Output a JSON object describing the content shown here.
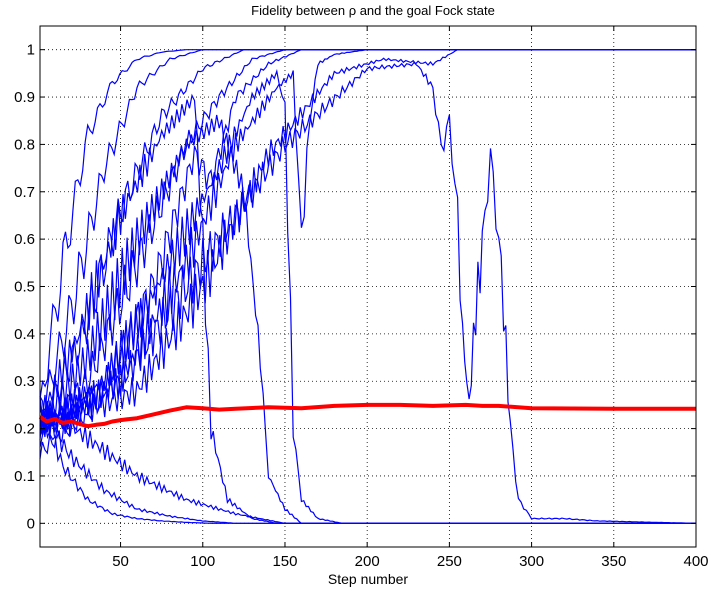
{
  "chart_data": {
    "type": "line",
    "title": "Fidelity between ρ and the goal Fock state",
    "xlabel": "Step number",
    "ylabel": "",
    "xlim": [
      1,
      400
    ],
    "ylim": [
      -0.05,
      1.05
    ],
    "x_ticks": [
      50,
      100,
      150,
      200,
      250,
      300,
      350,
      400
    ],
    "y_ticks": [
      0,
      0.1,
      0.2,
      0.3,
      0.4,
      0.5,
      0.6,
      0.7,
      0.8,
      0.9,
      1
    ],
    "x_tick_labels": [
      "50",
      "100",
      "150",
      "200",
      "250",
      "300",
      "350",
      "400"
    ],
    "y_tick_labels": [
      "0",
      "0.1",
      "0.2",
      "0.3",
      "0.4",
      "0.5",
      "0.6",
      "0.7",
      "0.8",
      "0.9",
      "1"
    ],
    "grid": true,
    "legend": "none",
    "colors": {
      "trajectories": "#0000ff",
      "average": "#ff0000",
      "grid": "#000000"
    },
    "series": [
      {
        "kind": "trajectory",
        "x": [
          1,
          15,
          30,
          45,
          60,
          75,
          90,
          100
        ],
        "y": [
          0.24,
          0.55,
          0.82,
          0.93,
          0.98,
          0.995,
          1.0,
          1.0
        ]
      },
      {
        "kind": "trajectory",
        "x": [
          1,
          20,
          40,
          60,
          80,
          100
        ],
        "y": [
          0.22,
          0.45,
          0.75,
          0.92,
          0.98,
          1.0
        ]
      },
      {
        "kind": "trajectory",
        "x": [
          1,
          25,
          50,
          75,
          100,
          125
        ],
        "y": [
          0.2,
          0.38,
          0.66,
          0.86,
          0.96,
          1.0
        ]
      },
      {
        "kind": "trajectory",
        "x": [
          1,
          30,
          60,
          90,
          110,
          130,
          150
        ],
        "y": [
          0.18,
          0.3,
          0.55,
          0.8,
          0.9,
          0.98,
          1.0
        ]
      },
      {
        "kind": "trajectory",
        "x": [
          1,
          35,
          70,
          95,
          105,
          120,
          140,
          160
        ],
        "y": [
          0.15,
          0.25,
          0.5,
          0.78,
          0.72,
          0.9,
          0.97,
          1.0
        ]
      },
      {
        "kind": "trajectory",
        "x": [
          1,
          15,
          30,
          45,
          60,
          75,
          90,
          105
        ],
        "y": [
          0.26,
          0.12,
          0.05,
          0.02,
          0.01,
          0.005,
          0.002,
          0.0
        ]
      },
      {
        "kind": "trajectory",
        "x": [
          1,
          20,
          40,
          60,
          80,
          100,
          120
        ],
        "y": [
          0.24,
          0.14,
          0.07,
          0.03,
          0.015,
          0.005,
          0.0
        ]
      },
      {
        "kind": "trajectory",
        "x": [
          1,
          30,
          60,
          90,
          120,
          150
        ],
        "y": [
          0.25,
          0.18,
          0.1,
          0.05,
          0.02,
          0.0
        ]
      },
      {
        "kind": "trajectory",
        "x": [
          1,
          25,
          50,
          75,
          95,
          100,
          105,
          115,
          130,
          145
        ],
        "y": [
          0.22,
          0.4,
          0.65,
          0.82,
          0.9,
          0.6,
          0.2,
          0.05,
          0.01,
          0.0
        ]
      },
      {
        "kind": "trajectory",
        "x": [
          1,
          30,
          60,
          90,
          110,
          125,
          135,
          140,
          150,
          160
        ],
        "y": [
          0.2,
          0.35,
          0.6,
          0.8,
          0.85,
          0.7,
          0.35,
          0.1,
          0.03,
          0.0
        ]
      },
      {
        "kind": "trajectory",
        "x": [
          1,
          40,
          80,
          110,
          130,
          145,
          150,
          155,
          160,
          170,
          185
        ],
        "y": [
          0.2,
          0.3,
          0.55,
          0.75,
          0.9,
          0.95,
          0.88,
          0.2,
          0.05,
          0.01,
          0.0
        ]
      },
      {
        "kind": "trajectory",
        "x": [
          1,
          50,
          90,
          120,
          145,
          155,
          160,
          165,
          170,
          180,
          200
        ],
        "y": [
          0.21,
          0.3,
          0.55,
          0.8,
          0.92,
          0.95,
          0.6,
          0.85,
          0.97,
          0.99,
          1.0
        ]
      },
      {
        "kind": "trajectory",
        "x": [
          1,
          60,
          100,
          140,
          180,
          210,
          240,
          255
        ],
        "y": [
          0.2,
          0.28,
          0.5,
          0.78,
          0.95,
          0.98,
          0.97,
          1.0
        ]
      },
      {
        "kind": "trajectory",
        "x": [
          1,
          50,
          100,
          150,
          200,
          230,
          240,
          245,
          250,
          255,
          258,
          262,
          266,
          270,
          275,
          280,
          283,
          287,
          292,
          300,
          320,
          340,
          400
        ],
        "y": [
          0.2,
          0.3,
          0.55,
          0.8,
          0.96,
          0.97,
          0.92,
          0.79,
          0.85,
          0.65,
          0.4,
          0.25,
          0.45,
          0.58,
          0.78,
          0.6,
          0.46,
          0.2,
          0.05,
          0.01,
          0.01,
          0.005,
          0.0
        ]
      }
    ],
    "average": {
      "x": [
        1,
        5,
        10,
        15,
        20,
        25,
        30,
        35,
        40,
        45,
        50,
        55,
        60,
        70,
        80,
        90,
        100,
        110,
        120,
        140,
        160,
        180,
        200,
        220,
        240,
        260,
        270,
        280,
        300,
        350,
        400
      ],
      "y": [
        0.225,
        0.215,
        0.22,
        0.212,
        0.215,
        0.21,
        0.205,
        0.208,
        0.21,
        0.215,
        0.218,
        0.22,
        0.222,
        0.23,
        0.238,
        0.245,
        0.243,
        0.24,
        0.242,
        0.245,
        0.243,
        0.248,
        0.25,
        0.25,
        0.248,
        0.25,
        0.248,
        0.248,
        0.243,
        0.242,
        0.242
      ]
    }
  }
}
